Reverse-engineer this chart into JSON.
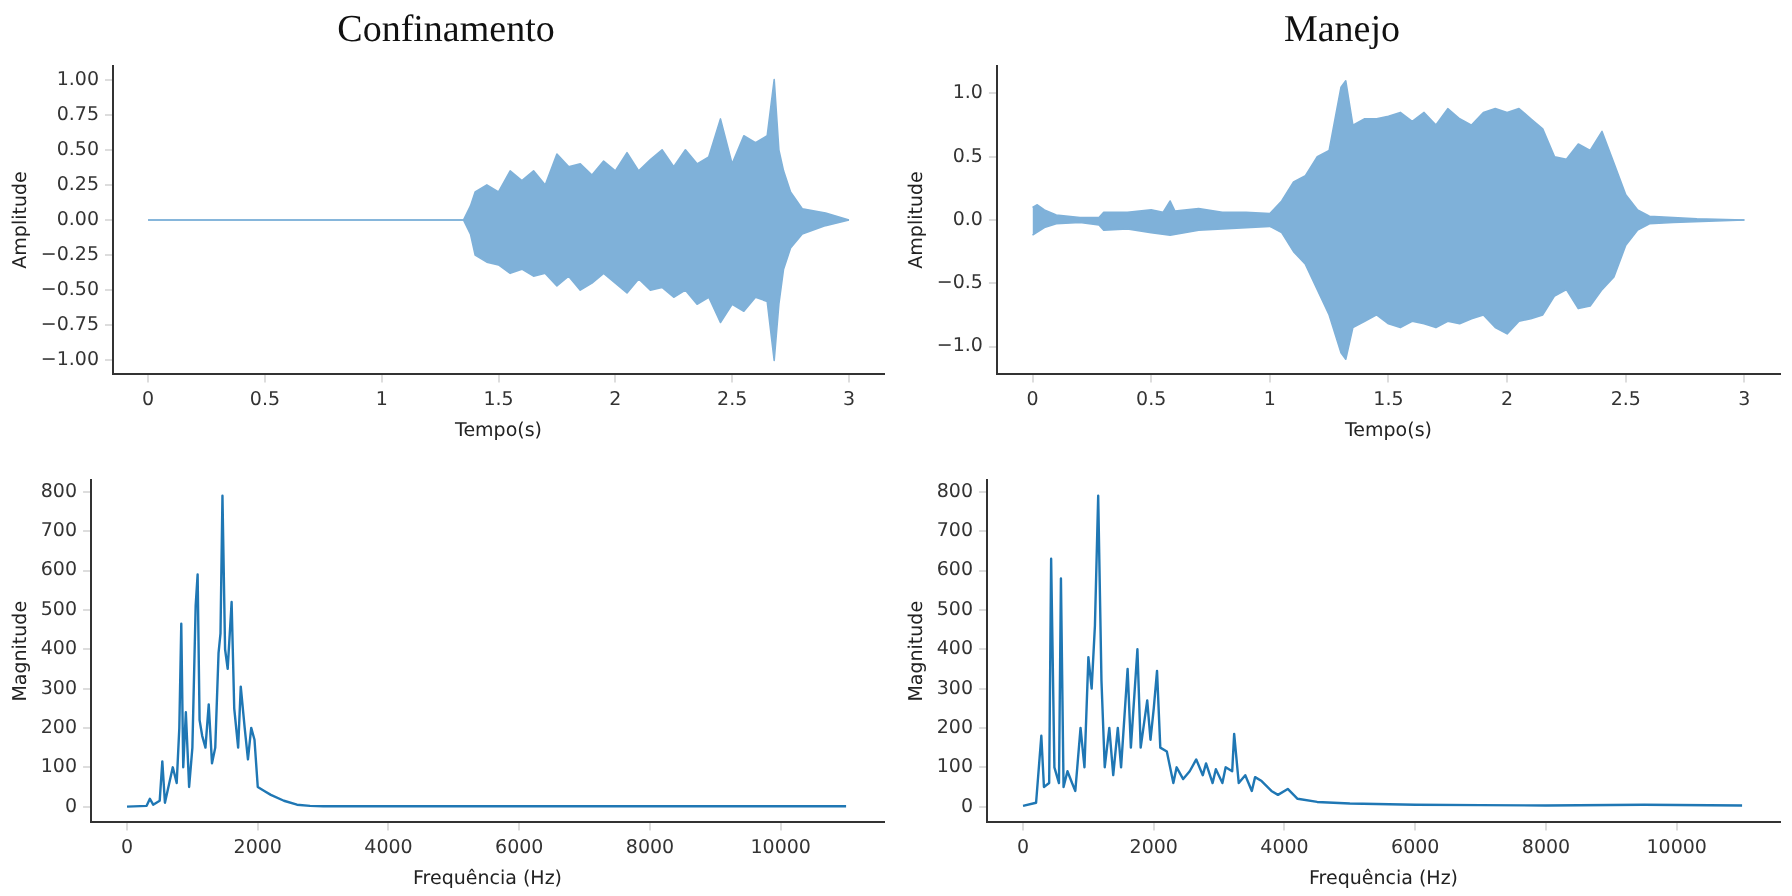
{
  "chart_data": [
    {
      "type": "area",
      "title": "Confinamento",
      "xlabel": "Tempo(s)",
      "ylabel": "Amplitude",
      "xlim": [
        -0.15,
        3.15
      ],
      "xticks": [
        0,
        0.5,
        1,
        1.5,
        2,
        2.5,
        3
      ],
      "ylim": [
        -1.1,
        1.1
      ],
      "yticks": [
        {
          "value": -1,
          "label": "−1.00"
        },
        {
          "value": -0.75,
          "label": "−0.75"
        },
        {
          "value": -0.5,
          "label": "−0.50"
        },
        {
          "value": -0.25,
          "label": "−0.25"
        },
        {
          "value": 0,
          "label": "0.00"
        },
        {
          "value": 0.25,
          "label": "0.25"
        },
        {
          "value": 0.5,
          "label": "0.50"
        },
        {
          "value": 0.75,
          "label": "0.75"
        },
        {
          "value": 1,
          "label": "1.00"
        }
      ],
      "grid": false,
      "legend": false,
      "series": [
        {
          "color": "#7fb1d9",
          "x": [
            0,
            1.35,
            1.38,
            1.4,
            1.45,
            1.5,
            1.55,
            1.6,
            1.65,
            1.7,
            1.75,
            1.8,
            1.85,
            1.9,
            1.95,
            2.0,
            2.05,
            2.1,
            2.15,
            2.2,
            2.25,
            2.3,
            2.35,
            2.4,
            2.45,
            2.5,
            2.55,
            2.6,
            2.65,
            2.68,
            2.7,
            2.72,
            2.75,
            2.8,
            2.9,
            3.0
          ],
          "values": [
            0,
            0,
            0.1,
            0.2,
            0.25,
            0.2,
            0.35,
            0.28,
            0.35,
            0.25,
            0.47,
            0.38,
            0.4,
            0.32,
            0.42,
            0.35,
            0.48,
            0.35,
            0.43,
            0.5,
            0.38,
            0.5,
            0.4,
            0.45,
            0.72,
            0.4,
            0.6,
            0.55,
            0.6,
            1.0,
            0.5,
            0.35,
            0.2,
            0.08,
            0.05,
            0
          ]
        },
        {
          "color": "#7fb1d9",
          "x": [
            0,
            1.35,
            1.38,
            1.4,
            1.45,
            1.5,
            1.55,
            1.6,
            1.65,
            1.7,
            1.75,
            1.8,
            1.85,
            1.9,
            1.95,
            2.0,
            2.05,
            2.1,
            2.15,
            2.2,
            2.25,
            2.3,
            2.35,
            2.4,
            2.45,
            2.5,
            2.55,
            2.6,
            2.65,
            2.68,
            2.7,
            2.72,
            2.75,
            2.8,
            2.9,
            3.0
          ],
          "values": [
            0,
            0,
            -0.1,
            -0.25,
            -0.3,
            -0.32,
            -0.38,
            -0.35,
            -0.4,
            -0.38,
            -0.47,
            -0.4,
            -0.5,
            -0.45,
            -0.38,
            -0.45,
            -0.52,
            -0.42,
            -0.5,
            -0.48,
            -0.55,
            -0.5,
            -0.6,
            -0.55,
            -0.73,
            -0.6,
            -0.65,
            -0.55,
            -0.58,
            -1.0,
            -0.6,
            -0.35,
            -0.2,
            -0.1,
            -0.04,
            0
          ]
        }
      ]
    },
    {
      "type": "area",
      "title": "Manejo",
      "xlabel": "Tempo(s)",
      "ylabel": "Amplitude",
      "xlim": [
        -0.15,
        3.15
      ],
      "xticks": [
        0,
        0.5,
        1,
        1.5,
        2,
        2.5,
        3
      ],
      "ylim": [
        -1.22,
        1.22
      ],
      "yticks": [
        {
          "value": -1,
          "label": "−1.0"
        },
        {
          "value": -0.5,
          "label": "−0.5"
        },
        {
          "value": 0,
          "label": "0.0"
        },
        {
          "value": 0.5,
          "label": "0.5"
        },
        {
          "value": 1,
          "label": "1.0"
        }
      ],
      "grid": false,
      "legend": false,
      "series": [
        {
          "color": "#7fb1d9",
          "x": [
            0,
            0.02,
            0.05,
            0.1,
            0.2,
            0.28,
            0.3,
            0.4,
            0.5,
            0.55,
            0.58,
            0.6,
            0.7,
            0.8,
            0.9,
            1.0,
            1.05,
            1.1,
            1.15,
            1.2,
            1.25,
            1.28,
            1.3,
            1.32,
            1.35,
            1.4,
            1.45,
            1.5,
            1.55,
            1.6,
            1.65,
            1.7,
            1.75,
            1.8,
            1.85,
            1.9,
            1.95,
            2.0,
            2.05,
            2.1,
            2.15,
            2.2,
            2.25,
            2.3,
            2.35,
            2.4,
            2.45,
            2.5,
            2.55,
            2.6,
            2.7,
            2.8,
            3.0
          ],
          "values": [
            0.1,
            0.12,
            0.08,
            0.04,
            0.02,
            0.02,
            0.06,
            0.06,
            0.08,
            0.06,
            0.15,
            0.07,
            0.09,
            0.06,
            0.06,
            0.05,
            0.15,
            0.3,
            0.35,
            0.5,
            0.55,
            0.85,
            1.05,
            1.1,
            0.75,
            0.8,
            0.8,
            0.82,
            0.85,
            0.78,
            0.85,
            0.75,
            0.88,
            0.8,
            0.75,
            0.85,
            0.88,
            0.85,
            0.88,
            0.8,
            0.72,
            0.5,
            0.48,
            0.6,
            0.55,
            0.7,
            0.45,
            0.2,
            0.08,
            0.03,
            0.02,
            0.01,
            0
          ]
        },
        {
          "color": "#7fb1d9",
          "x": [
            0,
            0.05,
            0.1,
            0.2,
            0.28,
            0.3,
            0.4,
            0.5,
            0.58,
            0.7,
            0.8,
            0.9,
            1.0,
            1.05,
            1.1,
            1.15,
            1.2,
            1.25,
            1.3,
            1.32,
            1.35,
            1.4,
            1.45,
            1.5,
            1.55,
            1.6,
            1.65,
            1.7,
            1.75,
            1.8,
            1.85,
            1.9,
            1.95,
            2.0,
            2.05,
            2.1,
            2.15,
            2.2,
            2.25,
            2.3,
            2.35,
            2.4,
            2.45,
            2.5,
            2.55,
            2.6,
            2.7,
            3.0
          ],
          "values": [
            -0.12,
            -0.06,
            -0.03,
            -0.02,
            -0.04,
            -0.08,
            -0.07,
            -0.1,
            -0.12,
            -0.08,
            -0.07,
            -0.06,
            -0.05,
            -0.1,
            -0.25,
            -0.35,
            -0.55,
            -0.75,
            -1.05,
            -1.1,
            -0.85,
            -0.8,
            -0.75,
            -0.82,
            -0.85,
            -0.8,
            -0.82,
            -0.85,
            -0.8,
            -0.82,
            -0.78,
            -0.75,
            -0.85,
            -0.9,
            -0.8,
            -0.78,
            -0.75,
            -0.6,
            -0.55,
            -0.7,
            -0.68,
            -0.55,
            -0.45,
            -0.2,
            -0.08,
            -0.03,
            -0.02,
            0
          ]
        }
      ]
    },
    {
      "type": "line",
      "xlabel": "Frequência (Hz)",
      "ylabel": "Magnitude",
      "xlim": [
        -550,
        11580
      ],
      "xticks": [
        0,
        2000,
        4000,
        6000,
        8000,
        10000
      ],
      "ylim": [
        -40,
        830
      ],
      "yticks": [
        0,
        100,
        200,
        300,
        400,
        500,
        600,
        700,
        800
      ],
      "grid": false,
      "legend": false,
      "marker": "none",
      "series": [
        {
          "color": "#1f77b4",
          "x": [
            0,
            300,
            350,
            400,
            500,
            540,
            580,
            700,
            760,
            800,
            830,
            860,
            900,
            950,
            1000,
            1050,
            1080,
            1110,
            1150,
            1200,
            1250,
            1300,
            1350,
            1400,
            1430,
            1460,
            1500,
            1540,
            1600,
            1640,
            1700,
            1740,
            1800,
            1850,
            1900,
            1950,
            2000,
            2100,
            2200,
            2400,
            2600,
            2800,
            3000,
            11000
          ],
          "values": [
            0,
            2,
            20,
            5,
            15,
            115,
            10,
            100,
            60,
            200,
            465,
            100,
            240,
            50,
            150,
            510,
            590,
            220,
            180,
            150,
            260,
            110,
            150,
            390,
            440,
            790,
            400,
            350,
            520,
            250,
            150,
            305,
            200,
            120,
            200,
            170,
            50,
            40,
            30,
            15,
            5,
            2,
            1,
            1
          ]
        }
      ]
    },
    {
      "type": "line",
      "xlabel": "Frequência (Hz)",
      "ylabel": "Magnitude",
      "xlim": [
        -550,
        11580
      ],
      "xticks": [
        0,
        2000,
        4000,
        6000,
        8000,
        10000
      ],
      "ylim": [
        -40,
        830
      ],
      "yticks": [
        0,
        100,
        200,
        300,
        400,
        500,
        600,
        700,
        800
      ],
      "grid": false,
      "legend": false,
      "marker": "none",
      "series": [
        {
          "color": "#1f77b4",
          "x": [
            0,
            200,
            280,
            320,
            400,
            430,
            480,
            550,
            580,
            620,
            680,
            750,
            800,
            880,
            940,
            1000,
            1050,
            1100,
            1150,
            1200,
            1250,
            1320,
            1380,
            1450,
            1500,
            1600,
            1650,
            1750,
            1800,
            1900,
            1950,
            2000,
            2050,
            2100,
            2200,
            2300,
            2350,
            2450,
            2550,
            2650,
            2750,
            2800,
            2900,
            2950,
            3050,
            3100,
            3200,
            3230,
            3300,
            3400,
            3500,
            3550,
            3650,
            3800,
            3900,
            4050,
            4200,
            4500,
            5000,
            6000,
            7000,
            8000,
            9500,
            11000
          ],
          "values": [
            2,
            10,
            180,
            50,
            60,
            630,
            100,
            60,
            580,
            50,
            90,
            60,
            40,
            200,
            100,
            380,
            300,
            460,
            790,
            320,
            100,
            200,
            80,
            200,
            100,
            350,
            150,
            400,
            150,
            270,
            170,
            250,
            345,
            150,
            140,
            60,
            100,
            70,
            90,
            120,
            80,
            110,
            60,
            95,
            60,
            100,
            90,
            185,
            60,
            80,
            40,
            75,
            65,
            40,
            30,
            45,
            20,
            12,
            8,
            5,
            4,
            3,
            5,
            3
          ]
        }
      ]
    }
  ]
}
